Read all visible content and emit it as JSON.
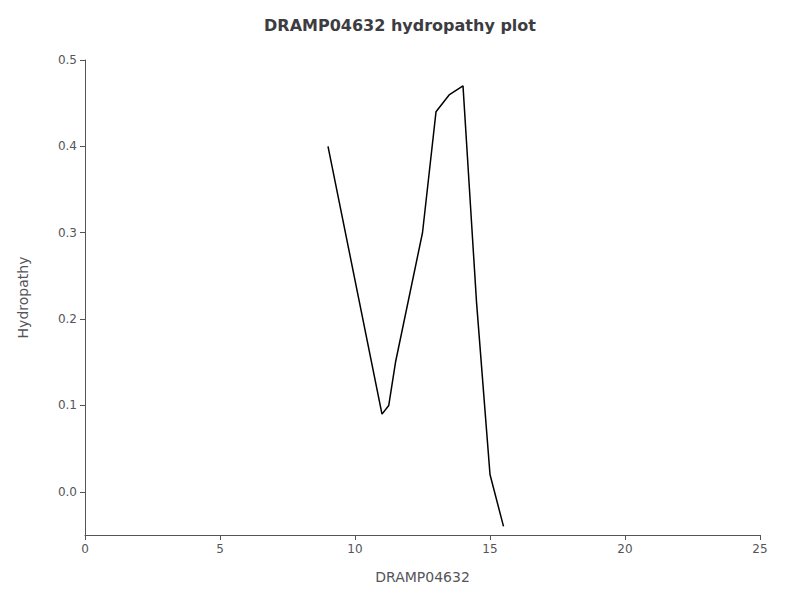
{
  "chart_data": {
    "type": "line",
    "title": "DRAMP04632 hydropathy plot",
    "xlabel": "DRAMP04632",
    "ylabel": "Hydropathy",
    "x": [
      9.0,
      11.0,
      11.25,
      11.5,
      12.5,
      13.0,
      13.5,
      14.0,
      14.5,
      15.0,
      15.5
    ],
    "values": [
      0.4,
      0.09,
      0.1,
      0.15,
      0.3,
      0.44,
      0.46,
      0.47,
      0.22,
      0.02,
      -0.04
    ],
    "color": "#000000",
    "xlim": [
      0,
      25
    ],
    "xticks": [
      0,
      5,
      10,
      15,
      20,
      25
    ],
    "ylim": [
      -0.05,
      0.5
    ],
    "yticks": [
      {
        "value": 0,
        "label": "0.0"
      },
      0.1,
      0.2,
      0.3,
      0.4,
      0.5
    ],
    "grid": false
  }
}
